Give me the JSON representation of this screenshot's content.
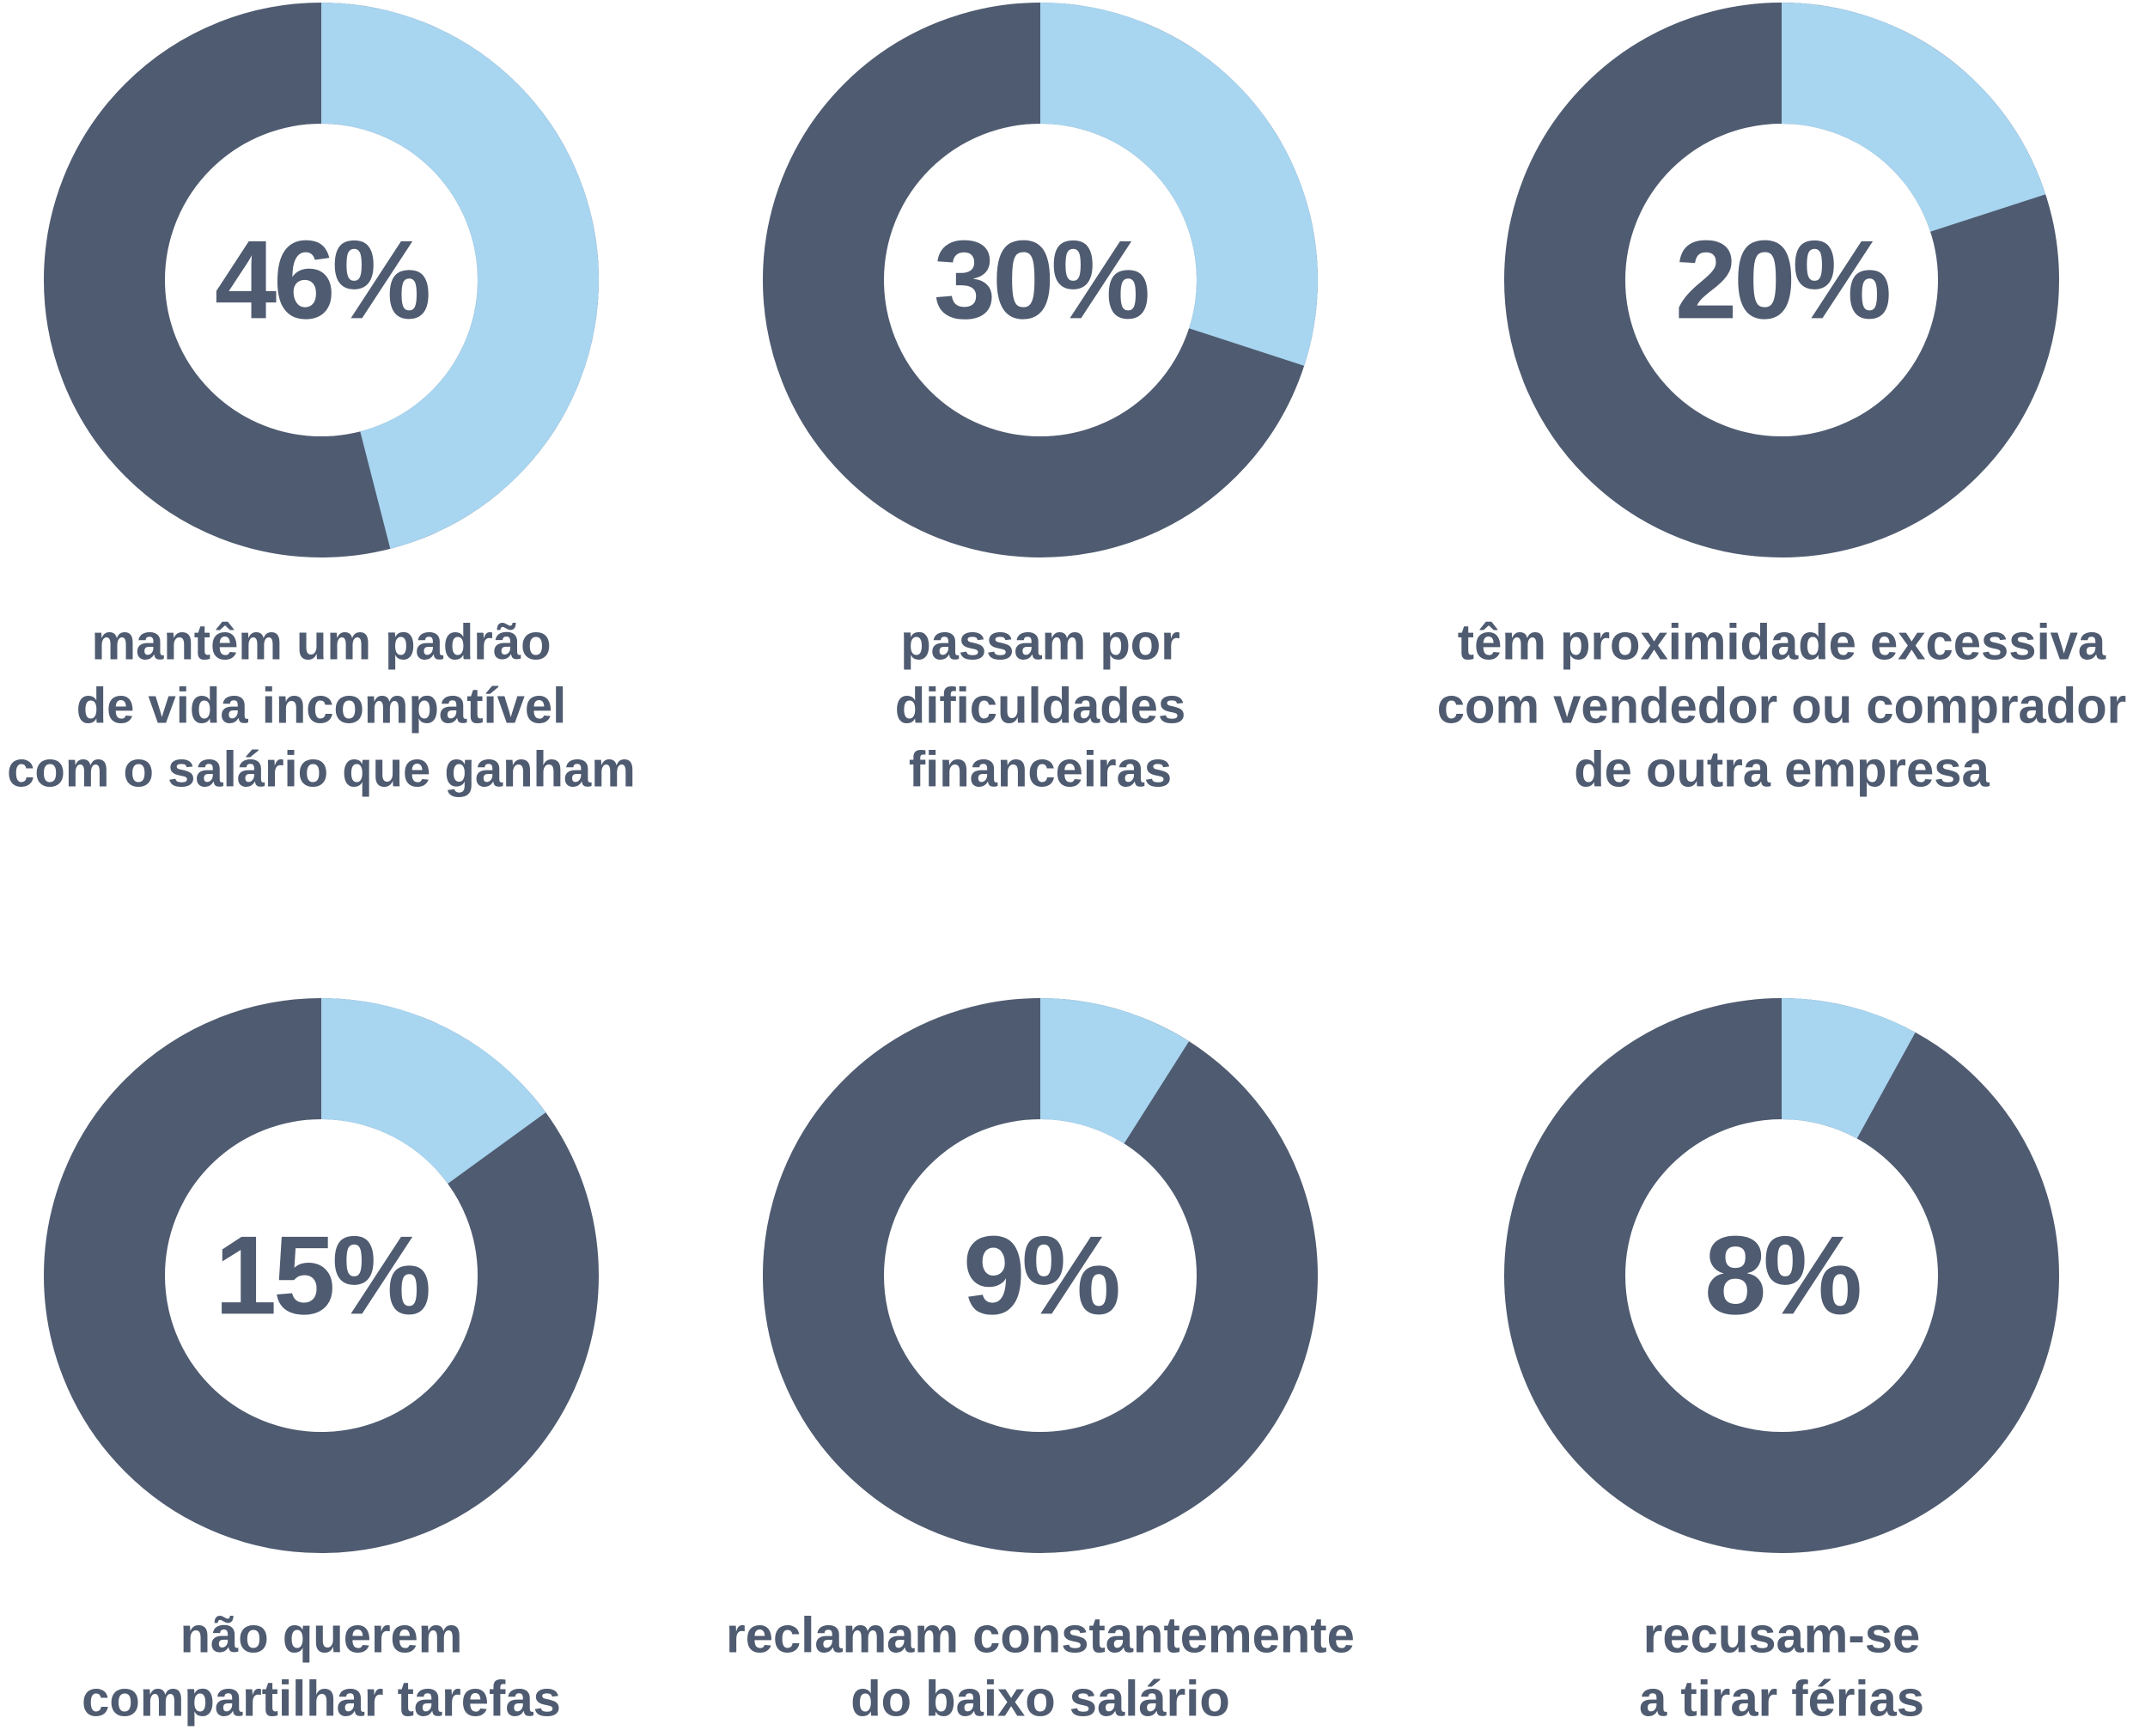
{
  "chart_data": [
    {
      "type": "donut",
      "values": [
        46
      ],
      "value_labels": [
        "46%"
      ],
      "caption": [
        "mantêm um padrão",
        "de vida incompatível",
        "com o salário que ganham"
      ],
      "color": "#a8d5f0",
      "track_color": "#4f5b70"
    },
    {
      "type": "donut",
      "values": [
        30
      ],
      "value_labels": [
        "30%"
      ],
      "caption": [
        "passam por",
        "dificuldades",
        "financeiras"
      ],
      "color": "#a8d5f0",
      "track_color": "#4f5b70"
    },
    {
      "type": "donut",
      "values": [
        20
      ],
      "value_labels": [
        "20%"
      ],
      "caption": [
        "têm proximidade excessiva",
        "com vendedor ou comprador",
        "de outra empresa"
      ],
      "color": "#a8d5f0",
      "track_color": "#4f5b70"
    },
    {
      "type": "donut",
      "values": [
        15
      ],
      "value_labels": [
        "15%"
      ],
      "caption": [
        "não querem",
        "compartilhar tarefas"
      ],
      "color": "#a8d5f0",
      "track_color": "#4f5b70"
    },
    {
      "type": "donut",
      "values": [
        9
      ],
      "value_labels": [
        "9%"
      ],
      "caption": [
        "reclamam constantemente",
        "do baixo salário"
      ],
      "color": "#a8d5f0",
      "track_color": "#4f5b70"
    },
    {
      "type": "donut",
      "values": [
        8
      ],
      "value_labels": [
        "8%"
      ],
      "caption": [
        "recusam-se",
        "a tirar férias"
      ],
      "color": "#a8d5f0",
      "track_color": "#4f5b70"
    }
  ]
}
